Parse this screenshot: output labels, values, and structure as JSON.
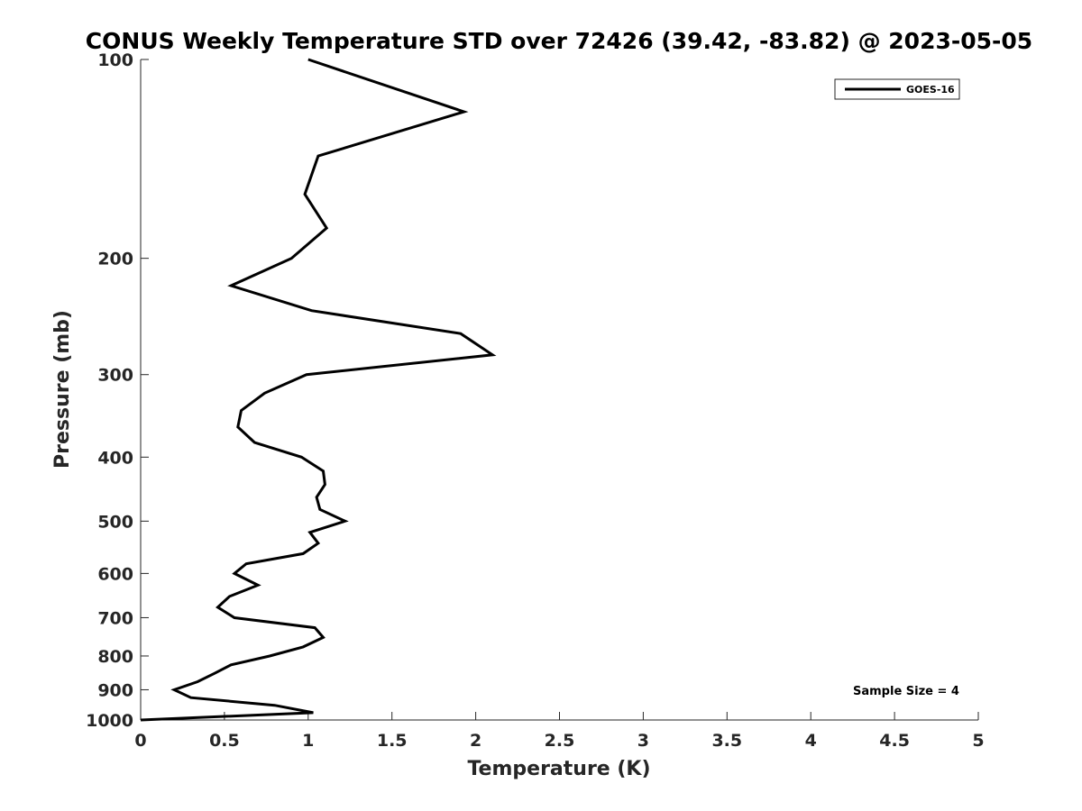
{
  "chart_data": {
    "type": "line",
    "title": "CONUS Weekly Temperature STD over 72426 (39.42, -83.82) @ 2023-05-05",
    "xlabel": "Temperature (K)",
    "ylabel": "Pressure (mb)",
    "xlim": [
      0,
      5
    ],
    "ylim": [
      100,
      1000
    ],
    "yscale": "log",
    "y_reversed": true,
    "xticks": [
      "0",
      "0.5",
      "1",
      "1.5",
      "2",
      "2.5",
      "3",
      "3.5",
      "4",
      "4.5",
      "5"
    ],
    "yticks": [
      "100",
      "200",
      "300",
      "400",
      "500",
      "600",
      "700",
      "800",
      "900",
      "1000"
    ],
    "grid": false,
    "legend": {
      "placement": "top-right",
      "entries": [
        "GOES-16"
      ]
    },
    "annotations": [
      "Sample Size = 4"
    ],
    "series": [
      {
        "name": "GOES-16",
        "color": "#000000",
        "x": [
          1.0,
          1.93,
          1.06,
          0.98,
          1.11,
          0.9,
          0.54,
          1.02,
          1.91,
          2.1,
          0.99,
          0.74,
          0.6,
          0.58,
          0.68,
          0.96,
          1.09,
          1.1,
          1.05,
          1.07,
          1.22,
          1.01,
          1.06,
          0.97,
          0.63,
          0.56,
          0.7,
          0.53,
          0.46,
          0.56,
          1.04,
          1.09,
          0.97,
          0.77,
          0.54,
          0.44,
          0.34,
          0.2,
          0.3,
          0.8,
          1.03,
          0.0
        ],
        "y": [
          100,
          120,
          140,
          160,
          180,
          200,
          220,
          240,
          260,
          280,
          300,
          320,
          340,
          360,
          380,
          400,
          420,
          440,
          460,
          480,
          500,
          520,
          540,
          560,
          580,
          600,
          625,
          650,
          675,
          700,
          725,
          750,
          775,
          800,
          825,
          850,
          875,
          900,
          925,
          950,
          975,
          1000
        ]
      }
    ]
  }
}
